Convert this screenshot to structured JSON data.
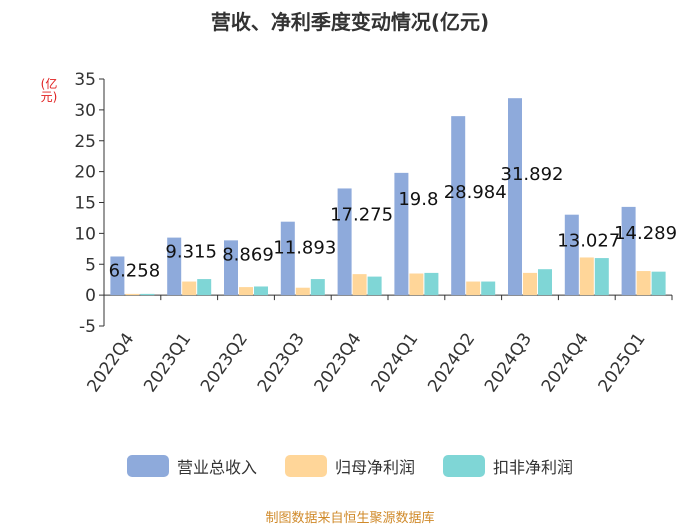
{
  "chart_data": {
    "type": "bar",
    "title": "营收、净利季度变动情况(亿元)",
    "ylabel": "(亿元)",
    "ylim": [
      -5,
      35
    ],
    "yticks": [
      -5,
      0,
      5,
      10,
      15,
      20,
      25,
      30,
      35
    ],
    "categories": [
      "2022Q4",
      "2023Q1",
      "2023Q2",
      "2023Q3",
      "2023Q4",
      "2024Q1",
      "2024Q2",
      "2024Q3",
      "2024Q4",
      "2025Q1"
    ],
    "series": [
      {
        "name": "营业总收入",
        "color": "#8eaadb",
        "values": [
          6.258,
          9.315,
          8.869,
          11.893,
          17.275,
          19.8,
          28.984,
          31.892,
          13.027,
          14.289
        ],
        "labels": [
          "6.258",
          "9.315",
          "8.869",
          "11.893",
          "17.275",
          "19.8",
          "28.984",
          "31.892",
          "13.027",
          "14.289"
        ]
      },
      {
        "name": "归母净利润",
        "color": "#ffd699",
        "values": [
          0.2,
          2.2,
          1.3,
          1.2,
          3.4,
          3.5,
          2.2,
          3.6,
          6.1,
          3.9
        ]
      },
      {
        "name": "扣非净利润",
        "color": "#7fd6d6",
        "values": [
          0.2,
          2.6,
          1.4,
          2.6,
          3.0,
          3.6,
          2.2,
          4.2,
          6.0,
          3.8
        ]
      }
    ],
    "grid": false,
    "legend_position": "bottom"
  },
  "source": "制图数据来自恒生聚源数据库"
}
